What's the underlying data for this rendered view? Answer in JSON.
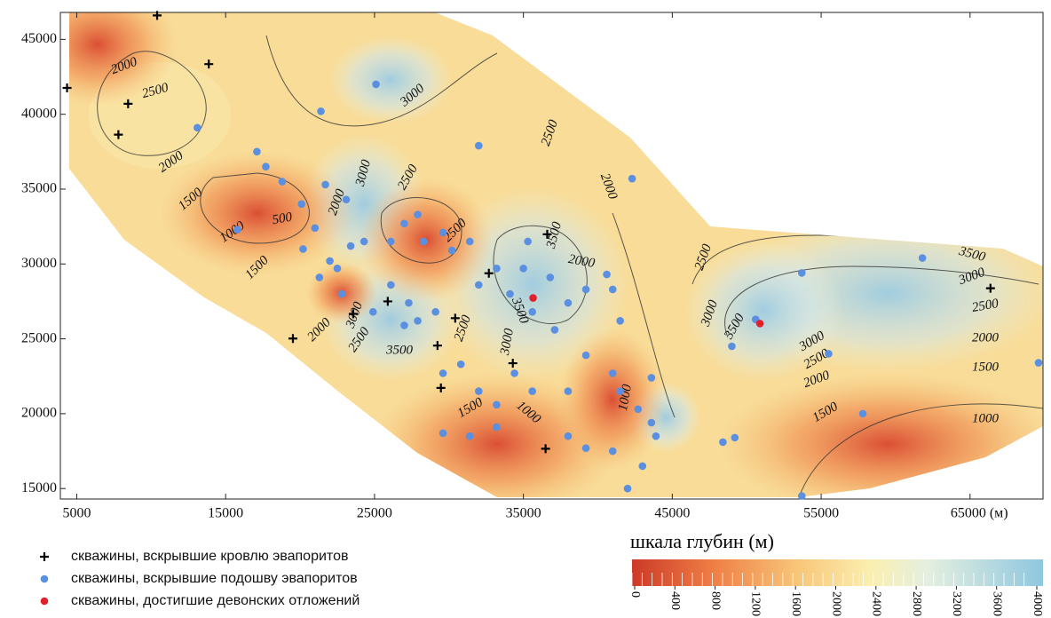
{
  "chart_data": {
    "type": "scatter",
    "xlim": [
      3900,
      69900
    ],
    "ylim": [
      14300,
      46800
    ],
    "xticks": [
      5000,
      15000,
      25000,
      35000,
      45000,
      55000,
      {
        "value": 65000,
        "label": "65000 (м)"
      }
    ],
    "yticks": [
      15000,
      20000,
      25000,
      30000,
      35000,
      40000,
      45000
    ],
    "series": [
      {
        "name": "скважины, вскрывшие кровлю эвапоритов",
        "color": "#000000",
        "marker": "cross",
        "x": [
          10400,
          4350,
          13870,
          8450,
          7800,
          19520,
          23570,
          25890,
          29230,
          29460,
          30420,
          32680,
          34290,
          36490,
          36600,
          66370
        ],
        "y": [
          46600,
          41760,
          43350,
          40700,
          38640,
          25020,
          26670,
          27500,
          24550,
          21720,
          26380,
          29380,
          23370,
          17660,
          31980,
          28380
        ]
      },
      {
        "name": "скважины, вскрывшие подошву эвапоритов",
        "color": "#5b8fe0",
        "marker": "dot",
        "x": [
          25100,
          13100,
          21400,
          32000,
          42300,
          17100,
          17700,
          15800,
          18800,
          20100,
          21000,
          21700,
          23100,
          20200,
          22000,
          23400,
          24300,
          26100,
          27000,
          27900,
          28300,
          29600,
          30200,
          31400,
          32000,
          33200,
          34100,
          35000,
          35300,
          36800,
          38000,
          37100,
          35600,
          39200,
          41000,
          41500,
          40600,
          26100,
          27300,
          27900,
          27000,
          29100,
          24900,
          22800,
          22500,
          21300,
          29600,
          30800,
          32000,
          33200,
          34400,
          35600,
          38000,
          39200,
          41000,
          41500,
          42700,
          43900,
          29600,
          31400,
          33200,
          38000,
          39200,
          41000,
          42000,
          43000,
          48400,
          49200,
          49000,
          50600,
          55500,
          53700,
          57800,
          61800,
          69600,
          53700,
          43600,
          43600
        ],
        "y": [
          42000,
          39100,
          40200,
          37900,
          35700,
          37500,
          36500,
          32300,
          35500,
          34000,
          32400,
          35300,
          34300,
          31000,
          30200,
          31200,
          31500,
          31500,
          32700,
          33300,
          31500,
          32100,
          30900,
          31500,
          28600,
          29700,
          28000,
          29700,
          31500,
          29100,
          27400,
          25600,
          26800,
          28300,
          28300,
          26200,
          29300,
          28600,
          27400,
          26200,
          25900,
          26800,
          26800,
          28000,
          29700,
          29100,
          22700,
          23300,
          21500,
          20600,
          22700,
          21500,
          21500,
          23900,
          22700,
          21500,
          20300,
          18500,
          18700,
          18500,
          19100,
          18500,
          17700,
          17500,
          15000,
          16500,
          18100,
          18400,
          24500,
          26300,
          24000,
          29400,
          20000,
          30400,
          23400,
          14500,
          22400,
          19400
        ]
      },
      {
        "name": "скважины, достигшие девонских отложений",
        "color": "#e0202a",
        "marker": "dot",
        "x": [
          35650,
          50890
        ],
        "y": [
          27730,
          26020
        ]
      }
    ],
    "contour_labels": [
      "2000",
      "2500",
      "2000",
      "1500",
      "1000",
      "1500",
      "500",
      "2000",
      "2500",
      "3000",
      "2500",
      "3000",
      "3500",
      "2000",
      "2500",
      "3000",
      "1500",
      "1000",
      "3500",
      "3000",
      "2500",
      "2000",
      "2500",
      "2000",
      "2500",
      "3000",
      "3500",
      "3500",
      "3000",
      "2500",
      "2000",
      "1500",
      "1000",
      "3000",
      "2500",
      "2000",
      "1500",
      "1000",
      "3500"
    ],
    "colorbar": {
      "title": "шкала глубин (м)",
      "lim": [
        0,
        4000
      ],
      "ticks": [
        0,
        400,
        800,
        1200,
        1600,
        2000,
        2400,
        2800,
        3200,
        3600,
        4000
      ]
    }
  }
}
